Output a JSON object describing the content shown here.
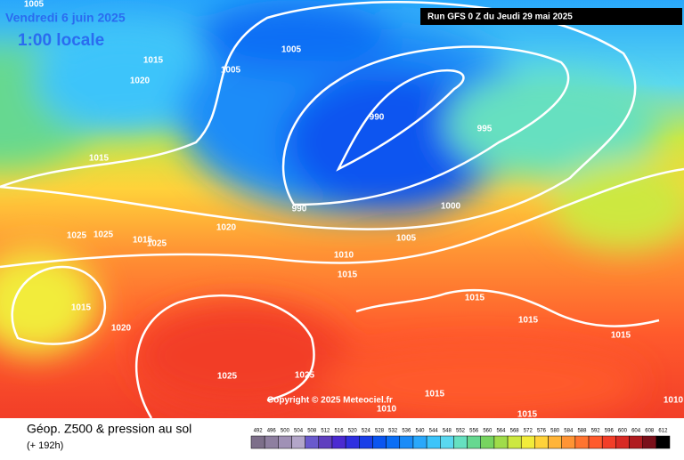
{
  "header": {
    "date": "Vendredi 6 juin 2025",
    "time": "1:00 locale",
    "run": "Run GFS 0 Z du Jeudi 29 mai 2025"
  },
  "map": {
    "copyright": "Copyright © 2025 Meteociel.fr",
    "isobar_labels": [
      1005,
      1015,
      1020,
      1005,
      1005,
      990,
      995,
      1015,
      990,
      1000,
      1025,
      1025,
      1015,
      1025,
      1020,
      1005,
      1010,
      1015,
      1015,
      1015,
      1020,
      1015,
      1015,
      1025,
      1025,
      1015,
      1010,
      1015,
      1010
    ]
  },
  "footer": {
    "title": "Géop. Z500 & pression au sol",
    "lead": "(+ 192h)"
  },
  "scale": {
    "values": [
      492,
      496,
      500,
      504,
      508,
      512,
      516,
      520,
      524,
      528,
      532,
      536,
      540,
      544,
      548,
      552,
      556,
      560,
      564,
      568,
      572,
      576,
      580,
      584,
      588,
      592,
      596,
      600,
      604,
      608,
      612
    ],
    "colors": [
      "#7d6f8a",
      "#8e7fa0",
      "#a091b6",
      "#b3a6c9",
      "#6a5acd",
      "#5f3fbf",
      "#4b2ad1",
      "#2f2fe0",
      "#1a3fe8",
      "#0a55f0",
      "#0a6ef5",
      "#1a8cf8",
      "#2aa8fb",
      "#3cc4fa",
      "#5ad8f0",
      "#66e0c0",
      "#66d890",
      "#77d460",
      "#a0dc4a",
      "#cde840",
      "#f2ec3a",
      "#ffd23a",
      "#ffb438",
      "#ff9434",
      "#ff7430",
      "#ff5a2c",
      "#f23e28",
      "#d82a24",
      "#b01c20",
      "#7a101a",
      "#000000"
    ]
  }
}
